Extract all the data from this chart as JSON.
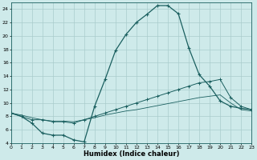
{
  "xlabel": "Humidex (Indice chaleur)",
  "background_color": "#ceeaea",
  "grid_color": "#aacccc",
  "line_color": "#1a5f5f",
  "xlim": [
    0,
    23
  ],
  "ylim": [
    4,
    25
  ],
  "yticks": [
    4,
    6,
    8,
    10,
    12,
    14,
    16,
    18,
    20,
    22,
    24
  ],
  "xticks": [
    0,
    1,
    2,
    3,
    4,
    5,
    6,
    7,
    8,
    9,
    10,
    11,
    12,
    13,
    14,
    15,
    16,
    17,
    18,
    19,
    20,
    21,
    22,
    23
  ],
  "line1_x": [
    0,
    1,
    2,
    3,
    4,
    5,
    6,
    7,
    8,
    9,
    10,
    11,
    12,
    13,
    14,
    15,
    16,
    17,
    18,
    19,
    20,
    21,
    22,
    23
  ],
  "line1_y": [
    8.5,
    8.0,
    7.0,
    5.5,
    5.2,
    5.2,
    4.5,
    4.2,
    9.5,
    13.5,
    17.8,
    20.2,
    22.0,
    23.2,
    24.5,
    24.5,
    23.3,
    18.2,
    14.2,
    12.5,
    10.3,
    9.5,
    9.2,
    9.0
  ],
  "line2_x": [
    0,
    1,
    2,
    3,
    4,
    5,
    6,
    7,
    8,
    9,
    10,
    11,
    12,
    13,
    14,
    15,
    16,
    17,
    18,
    19,
    20,
    21,
    22,
    23
  ],
  "line2_y": [
    8.5,
    8.0,
    7.5,
    7.5,
    7.2,
    7.2,
    7.0,
    7.5,
    8.0,
    8.5,
    9.0,
    9.5,
    10.0,
    10.5,
    11.0,
    11.5,
    12.0,
    12.5,
    13.0,
    13.2,
    13.5,
    10.8,
    9.5,
    9.0
  ],
  "line3_x": [
    0,
    1,
    2,
    3,
    4,
    5,
    6,
    7,
    8,
    9,
    10,
    11,
    12,
    13,
    14,
    15,
    16,
    17,
    18,
    19,
    20,
    21,
    22,
    23
  ],
  "line3_y": [
    8.5,
    8.2,
    7.8,
    7.5,
    7.3,
    7.3,
    7.2,
    7.5,
    7.8,
    8.2,
    8.5,
    8.8,
    9.0,
    9.3,
    9.6,
    9.9,
    10.2,
    10.5,
    10.8,
    11.0,
    11.2,
    10.0,
    9.0,
    8.8
  ]
}
